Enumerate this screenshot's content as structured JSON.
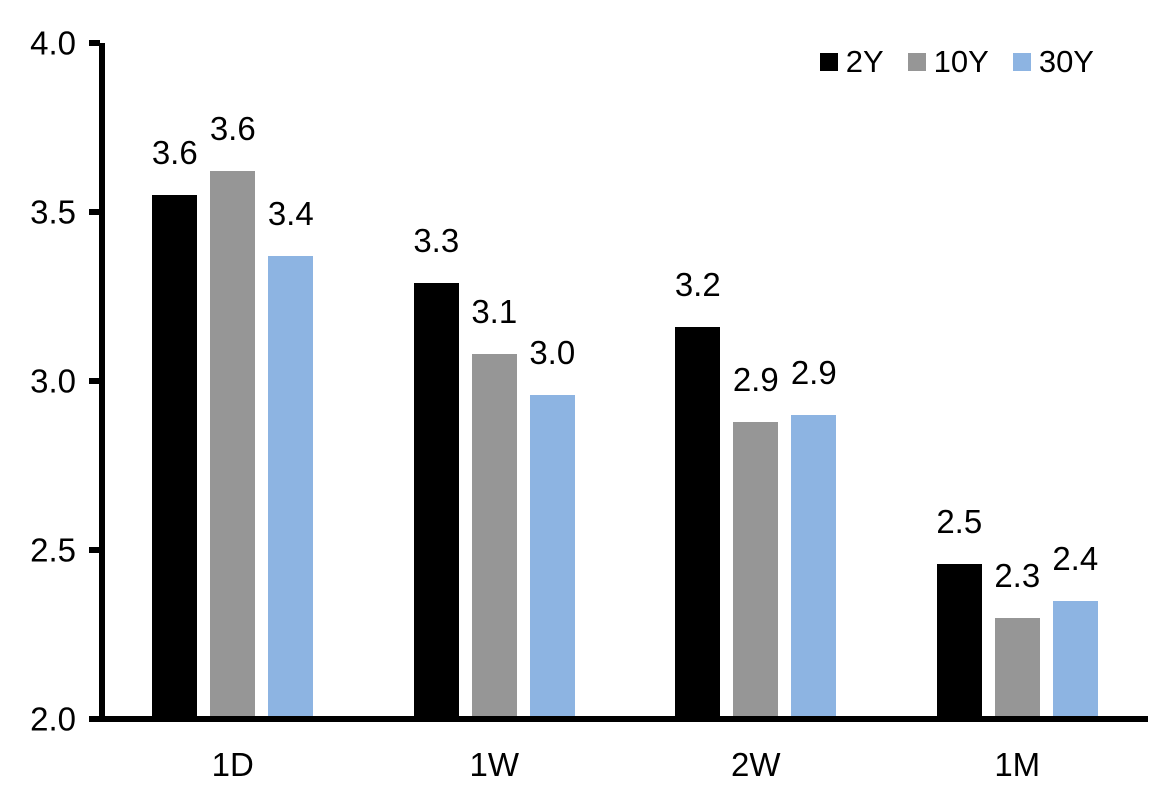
{
  "chart_data": {
    "type": "bar",
    "title": "",
    "xlabel": "",
    "ylabel": "",
    "categories": [
      "1D",
      "1W",
      "2W",
      "1M"
    ],
    "series": [
      {
        "name": "2Y",
        "color": "#000000",
        "values": [
          3.55,
          3.29,
          3.16,
          2.46
        ],
        "bar_labels": [
          "3.6",
          "3.3",
          "3.2",
          "2.5"
        ]
      },
      {
        "name": "10Y",
        "color": "#969696",
        "values": [
          3.62,
          3.08,
          2.88,
          2.3
        ],
        "bar_labels": [
          "3.6",
          "3.1",
          "2.9",
          "2.3"
        ]
      },
      {
        "name": "30Y",
        "color": "#8DB4E2",
        "values": [
          3.37,
          2.96,
          2.9,
          2.35
        ],
        "bar_labels": [
          "3.4",
          "3.0",
          "2.9",
          "2.4"
        ]
      }
    ],
    "ylim": [
      2.0,
      4.0
    ],
    "yticks": {
      "values": [
        2.0,
        2.5,
        3.0,
        3.5,
        4.0
      ],
      "labels": [
        "2.0",
        "2.5",
        "3.0",
        "3.5",
        "4.0"
      ]
    },
    "grid": false,
    "legend_position": "top-right",
    "axis_color": "#000000",
    "background_color": "#FFFFFF",
    "label_color": "#000000"
  }
}
